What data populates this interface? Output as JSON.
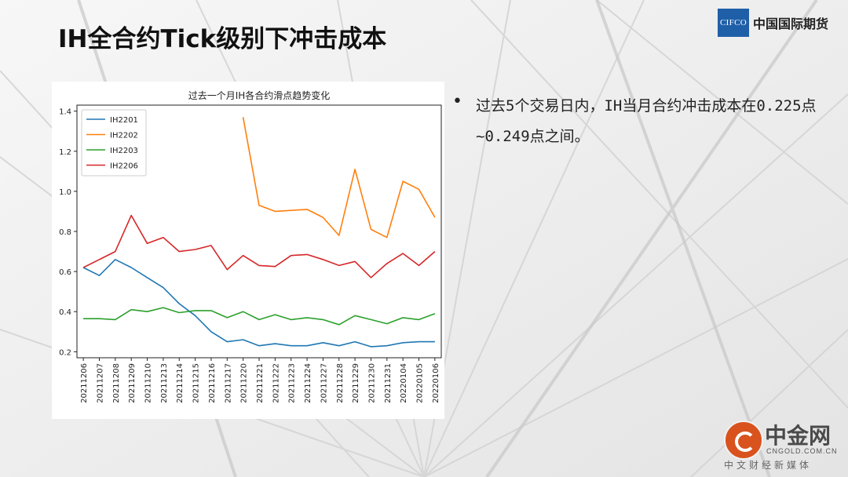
{
  "slide": {
    "title": "IH全合约Tick级别下冲击成本",
    "bullet": "过去5个交易日内，IH当月合约冲击成本在0.225点~0.249点之间。"
  },
  "logo": {
    "mark": "CIFCO",
    "name": "中国国际期货",
    "color": "#1f5fa8"
  },
  "watermark": {
    "title": "中金网",
    "domain": "CNGOLD.COM.CN",
    "subtitle": "中文财经新媒体",
    "color": "#d9531e"
  },
  "chart_data": {
    "type": "line",
    "title": "过去一个月IH各合约滑点趋势变化",
    "xlabel": "",
    "ylabel": "",
    "ylim": [
      0.17,
      1.43
    ],
    "yticks": [
      "0.2",
      "0.4",
      "0.6",
      "0.8",
      "1.0",
      "1.2",
      "1.4"
    ],
    "legend_position": "top-left",
    "categories": [
      "20211206",
      "20211207",
      "20211208",
      "20211209",
      "20211210",
      "20211213",
      "20211214",
      "20211215",
      "20211216",
      "20211217",
      "20211220",
      "20211221",
      "20211222",
      "20211223",
      "20211224",
      "20211227",
      "20211228",
      "20211229",
      "20211230",
      "20211231",
      "20220104",
      "20220105",
      "20220106"
    ],
    "series": [
      {
        "name": "IH2201",
        "color": "#1f77b4",
        "values": [
          0.62,
          0.58,
          0.66,
          0.62,
          0.57,
          0.52,
          0.44,
          0.38,
          0.3,
          0.25,
          0.26,
          0.23,
          0.24,
          0.23,
          0.23,
          0.245,
          0.23,
          0.25,
          0.225,
          0.23,
          0.245,
          0.25,
          0.25
        ]
      },
      {
        "name": "IH2202",
        "color": "#ff7f0e",
        "values": [
          null,
          null,
          null,
          null,
          null,
          null,
          null,
          null,
          null,
          null,
          1.37,
          0.93,
          0.9,
          0.905,
          0.91,
          0.87,
          0.78,
          1.11,
          0.81,
          0.77,
          1.05,
          1.01,
          0.87
        ]
      },
      {
        "name": "IH2203",
        "color": "#2ca02c",
        "values": [
          0.365,
          0.365,
          0.36,
          0.41,
          0.4,
          0.42,
          0.395,
          0.405,
          0.405,
          0.37,
          0.4,
          0.36,
          0.385,
          0.36,
          0.37,
          0.36,
          0.335,
          0.38,
          0.36,
          0.34,
          0.37,
          0.36,
          0.39
        ]
      },
      {
        "name": "IH2206",
        "color": "#d62728",
        "values": [
          0.62,
          0.66,
          0.7,
          0.88,
          0.74,
          0.77,
          0.7,
          0.71,
          0.73,
          0.61,
          0.68,
          0.63,
          0.625,
          0.68,
          0.685,
          0.66,
          0.63,
          0.65,
          0.57,
          0.64,
          0.69,
          0.63,
          0.7
        ]
      }
    ]
  }
}
